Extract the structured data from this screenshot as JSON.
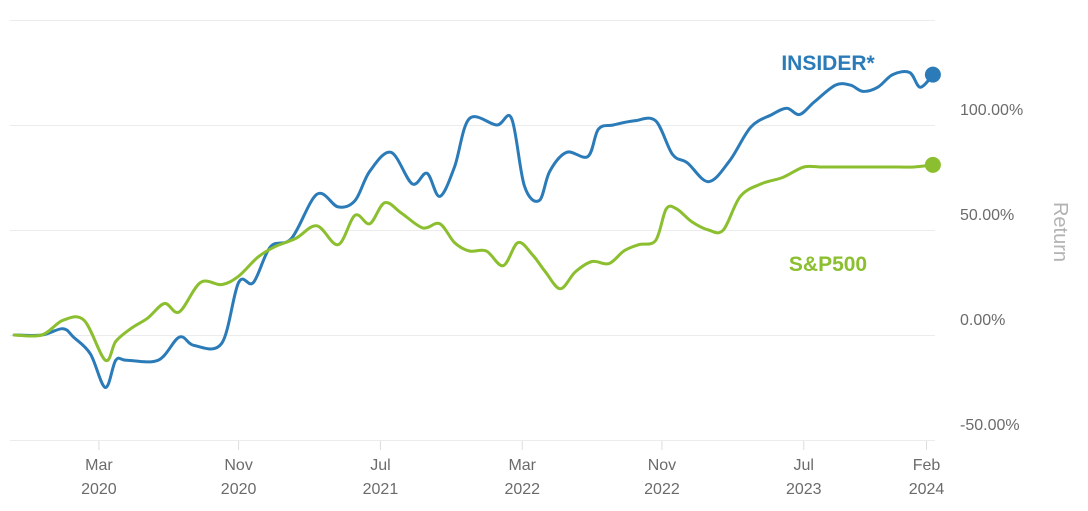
{
  "chart_data": {
    "type": "line",
    "ylabel": "Return",
    "ylim": [
      -50,
      150
    ],
    "yticks": [
      {
        "value": 100,
        "label": "100.00%"
      },
      {
        "value": 50,
        "label": "50.00%"
      },
      {
        "value": 0,
        "label": "0.00%"
      },
      {
        "value": -50,
        "label": "-50.00%"
      }
    ],
    "xlim": [
      2019.75,
      2024.12
    ],
    "xticks": [
      {
        "value": 2020.17,
        "line1": "Mar",
        "line2": "2020"
      },
      {
        "value": 2020.83,
        "line1": "Nov",
        "line2": "2020"
      },
      {
        "value": 2021.5,
        "line1": "Jul",
        "line2": "2021"
      },
      {
        "value": 2022.17,
        "line1": "Mar",
        "line2": "2022"
      },
      {
        "value": 2022.83,
        "line1": "Nov",
        "line2": "2022"
      },
      {
        "value": 2023.5,
        "line1": "Jul",
        "line2": "2023"
      },
      {
        "value": 2024.08,
        "line1": "Feb",
        "line2": "2024"
      }
    ],
    "series": [
      {
        "name": "INSIDER*",
        "color": "#2b7bb9",
        "x": [
          2019.77,
          2019.9,
          2020.0,
          2020.05,
          2020.13,
          2020.2,
          2020.25,
          2020.3,
          2020.45,
          2020.55,
          2020.62,
          2020.75,
          2020.83,
          2020.9,
          2020.98,
          2021.08,
          2021.2,
          2021.3,
          2021.38,
          2021.45,
          2021.55,
          2021.65,
          2021.72,
          2021.78,
          2021.85,
          2021.92,
          2022.05,
          2022.12,
          2022.18,
          2022.25,
          2022.3,
          2022.38,
          2022.48,
          2022.53,
          2022.6,
          2022.7,
          2022.8,
          2022.88,
          2022.95,
          2023.05,
          2023.15,
          2023.25,
          2023.35,
          2023.42,
          2023.48,
          2023.55,
          2023.65,
          2023.72,
          2023.78,
          2023.85,
          2023.92,
          2024.0,
          2024.05,
          2024.11
        ],
        "y": [
          0,
          0,
          3,
          -1,
          -9,
          -25,
          -12,
          -12,
          -12,
          -1,
          -5,
          -4,
          25,
          25,
          42,
          46,
          67,
          61,
          64,
          78,
          87,
          72,
          77,
          66,
          80,
          103,
          100,
          103,
          71,
          64,
          78,
          87,
          85,
          98,
          100,
          102,
          102,
          86,
          82,
          73,
          83,
          99,
          105,
          108,
          105,
          111,
          119,
          119,
          116,
          118,
          124,
          125,
          118,
          124
        ]
      },
      {
        "name": "S&P500",
        "color": "#8bbf2f",
        "x": [
          2019.77,
          2019.9,
          2020.0,
          2020.1,
          2020.2,
          2020.25,
          2020.32,
          2020.4,
          2020.48,
          2020.55,
          2020.65,
          2020.75,
          2020.83,
          2020.92,
          2021.0,
          2021.1,
          2021.2,
          2021.3,
          2021.38,
          2021.45,
          2021.52,
          2021.6,
          2021.7,
          2021.78,
          2021.85,
          2021.92,
          2022.0,
          2022.08,
          2022.15,
          2022.22,
          2022.28,
          2022.35,
          2022.42,
          2022.5,
          2022.58,
          2022.65,
          2022.72,
          2022.8,
          2022.85,
          2022.9,
          2022.97,
          2023.05,
          2023.12,
          2023.2,
          2023.3,
          2023.4,
          2023.5,
          2023.58,
          2023.65,
          2023.72,
          2023.8,
          2023.88,
          2023.95,
          2024.02,
          2024.11
        ],
        "y": [
          0,
          0,
          7,
          7,
          -12,
          -3,
          3,
          8,
          15,
          11,
          25,
          24,
          28,
          37,
          42,
          46,
          52,
          43,
          57,
          53,
          63,
          58,
          51,
          53,
          44,
          40,
          40,
          33,
          44,
          38,
          30,
          22,
          30,
          35,
          34,
          40,
          43,
          45,
          60,
          60,
          54,
          50,
          50,
          66,
          72,
          75,
          80,
          80,
          80,
          80,
          80,
          80,
          80,
          80,
          81
        ]
      }
    ]
  }
}
